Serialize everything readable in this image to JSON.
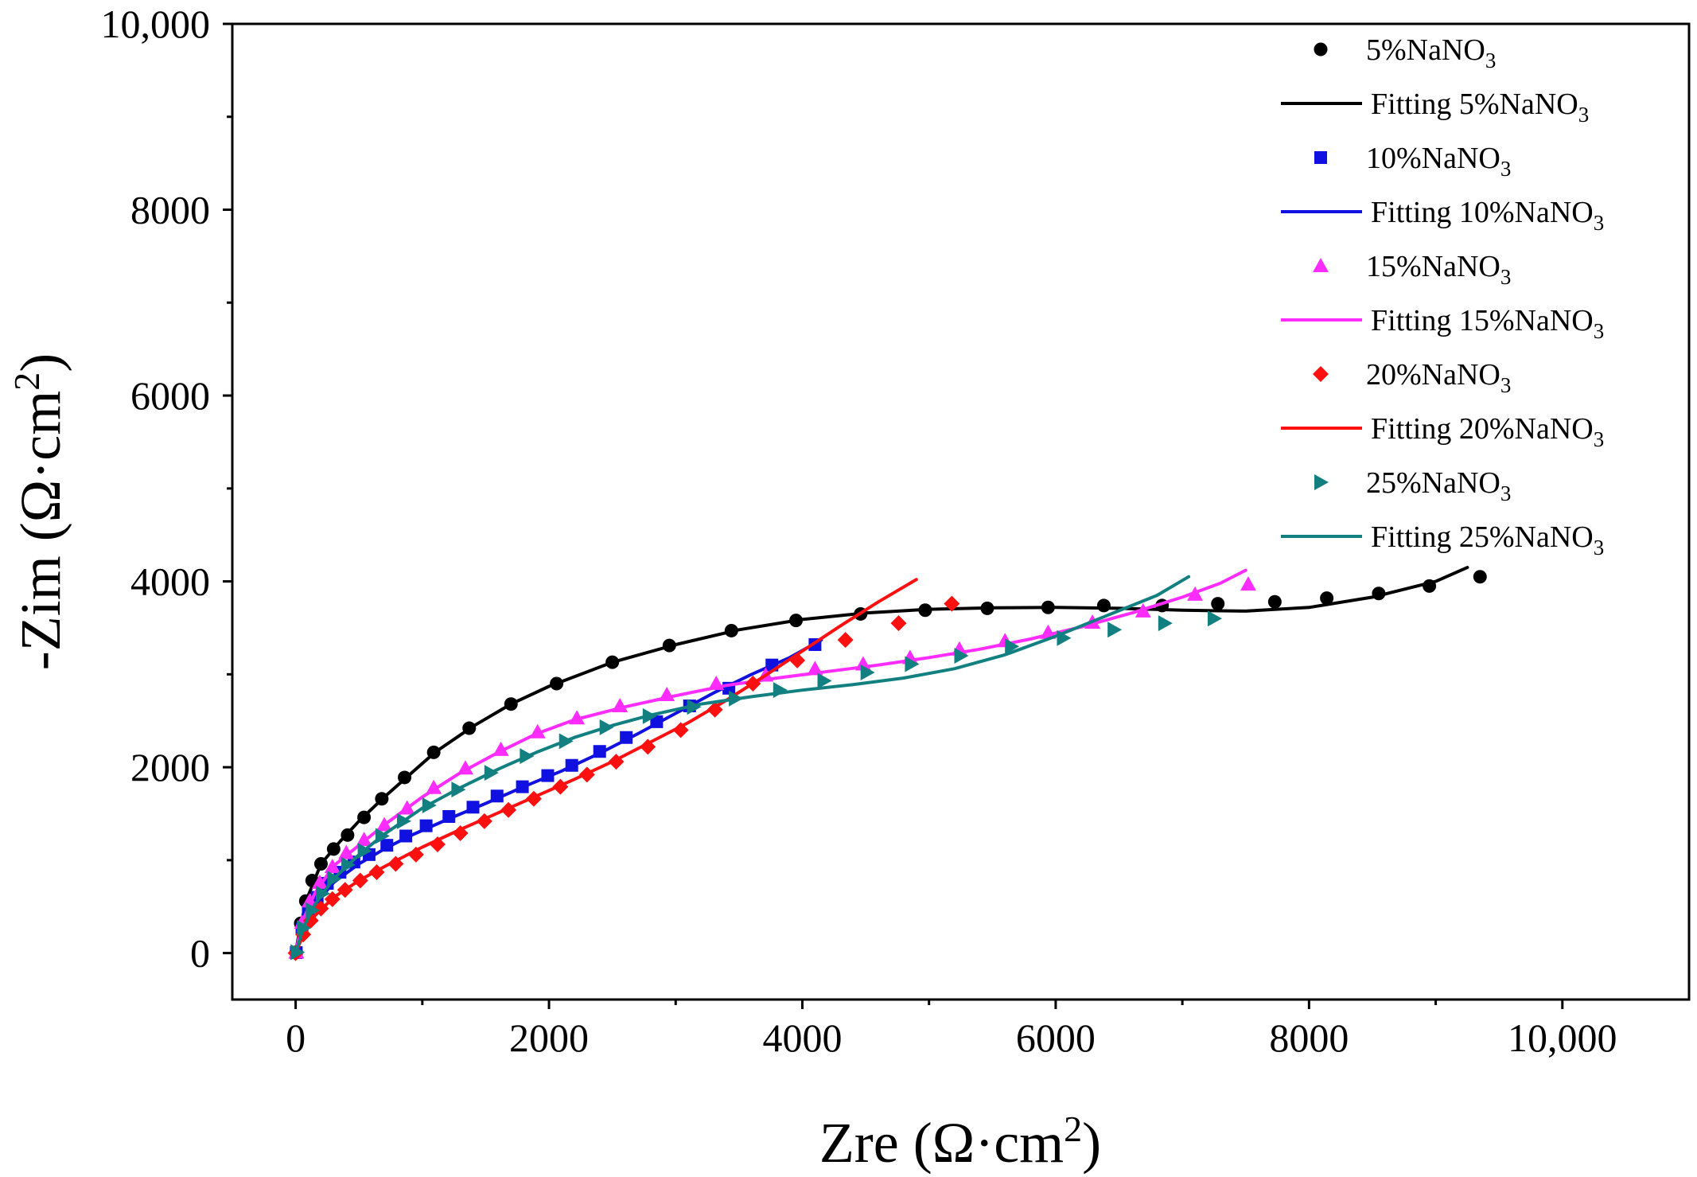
{
  "chart_data": {
    "type": "scatter",
    "title": "",
    "xlabel": {
      "main": "Zre (Ω·cm",
      "sup": "2",
      "tail": ")"
    },
    "ylabel": {
      "main": "-Zim (Ω·cm",
      "sup": "2",
      "tail": ")"
    },
    "xlim": [
      -500,
      11000
    ],
    "ylim": [
      -500,
      10000
    ],
    "xticks": [
      0,
      2000,
      4000,
      6000,
      8000,
      10000
    ],
    "xtick_labels": [
      "0",
      "2000",
      "4000",
      "6000",
      "8000",
      "10,000"
    ],
    "yticks": [
      0,
      2000,
      4000,
      6000,
      8000,
      10000
    ],
    "ytick_labels": [
      "0",
      "2000",
      "4000",
      "6000",
      "8000",
      "10,000"
    ],
    "grid": false,
    "legend_position": "top-right",
    "series": [
      {
        "name": "5%NaNO",
        "sub": "3",
        "fit_name": "Fitting 5%NaNO",
        "fit_sub": "3",
        "color": "#000000",
        "marker": "circle",
        "points": [
          [
            5,
            10
          ],
          [
            40,
            320
          ],
          [
            80,
            560
          ],
          [
            130,
            780
          ],
          [
            200,
            960
          ],
          [
            300,
            1120
          ],
          [
            410,
            1270
          ],
          [
            540,
            1460
          ],
          [
            680,
            1660
          ],
          [
            860,
            1890
          ],
          [
            1090,
            2160
          ],
          [
            1370,
            2420
          ],
          [
            1700,
            2680
          ],
          [
            2060,
            2900
          ],
          [
            2500,
            3130
          ],
          [
            2950,
            3310
          ],
          [
            3440,
            3470
          ],
          [
            3950,
            3580
          ],
          [
            4460,
            3650
          ],
          [
            4970,
            3690
          ],
          [
            5460,
            3710
          ],
          [
            5940,
            3720
          ],
          [
            6380,
            3740
          ],
          [
            6840,
            3740
          ],
          [
            7280,
            3760
          ],
          [
            7730,
            3780
          ],
          [
            8140,
            3820
          ],
          [
            8550,
            3870
          ],
          [
            8950,
            3950
          ],
          [
            9350,
            4050
          ]
        ],
        "fit": [
          [
            0,
            0
          ],
          [
            40,
            320
          ],
          [
            100,
            620
          ],
          [
            200,
            960
          ],
          [
            350,
            1200
          ],
          [
            500,
            1420
          ],
          [
            700,
            1680
          ],
          [
            900,
            1920
          ],
          [
            1100,
            2160
          ],
          [
            1400,
            2440
          ],
          [
            1700,
            2680
          ],
          [
            2000,
            2870
          ],
          [
            2500,
            3130
          ],
          [
            3000,
            3320
          ],
          [
            3500,
            3480
          ],
          [
            4000,
            3590
          ],
          [
            4500,
            3660
          ],
          [
            5000,
            3700
          ],
          [
            5500,
            3715
          ],
          [
            6000,
            3720
          ],
          [
            6500,
            3710
          ],
          [
            7000,
            3690
          ],
          [
            7500,
            3680
          ],
          [
            8000,
            3720
          ],
          [
            8500,
            3830
          ],
          [
            9000,
            4000
          ],
          [
            9250,
            4150
          ]
        ]
      },
      {
        "name": "10%NaNO",
        "sub": "3",
        "fit_name": "Fitting 10%NaNO",
        "fit_sub": "3",
        "color": "#1010e0",
        "marker": "square",
        "points": [
          [
            5,
            5
          ],
          [
            50,
            260
          ],
          [
            100,
            450
          ],
          [
            170,
            600
          ],
          [
            250,
            750
          ],
          [
            350,
            870
          ],
          [
            460,
            980
          ],
          [
            580,
            1060
          ],
          [
            720,
            1160
          ],
          [
            870,
            1260
          ],
          [
            1030,
            1370
          ],
          [
            1210,
            1470
          ],
          [
            1400,
            1570
          ],
          [
            1590,
            1690
          ],
          [
            1790,
            1790
          ],
          [
            1990,
            1910
          ],
          [
            2180,
            2020
          ],
          [
            2400,
            2170
          ],
          [
            2610,
            2320
          ],
          [
            2850,
            2490
          ],
          [
            3110,
            2660
          ],
          [
            3420,
            2850
          ],
          [
            3760,
            3100
          ],
          [
            4100,
            3320
          ]
        ],
        "fit": [
          [
            0,
            0
          ],
          [
            50,
            260
          ],
          [
            150,
            520
          ],
          [
            300,
            760
          ],
          [
            500,
            960
          ],
          [
            700,
            1120
          ],
          [
            900,
            1260
          ],
          [
            1200,
            1440
          ],
          [
            1500,
            1610
          ],
          [
            1800,
            1790
          ],
          [
            2100,
            1960
          ],
          [
            2400,
            2150
          ],
          [
            2700,
            2360
          ],
          [
            3000,
            2580
          ],
          [
            3300,
            2800
          ],
          [
            3600,
            3000
          ],
          [
            3900,
            3180
          ],
          [
            4150,
            3370
          ]
        ]
      },
      {
        "name": "15%NaNO",
        "sub": "3",
        "fit_name": "Fitting 15%NaNO",
        "fit_sub": "3",
        "color": "#ff2cff",
        "marker": "triangle-up",
        "points": [
          [
            5,
            10
          ],
          [
            50,
            330
          ],
          [
            110,
            560
          ],
          [
            190,
            760
          ],
          [
            290,
            930
          ],
          [
            400,
            1080
          ],
          [
            540,
            1220
          ],
          [
            700,
            1380
          ],
          [
            880,
            1560
          ],
          [
            1090,
            1780
          ],
          [
            1340,
            1990
          ],
          [
            1620,
            2190
          ],
          [
            1910,
            2380
          ],
          [
            2220,
            2530
          ],
          [
            2560,
            2660
          ],
          [
            2930,
            2780
          ],
          [
            3320,
            2900
          ],
          [
            3710,
            2990
          ],
          [
            4100,
            3060
          ],
          [
            4480,
            3110
          ],
          [
            4850,
            3180
          ],
          [
            5240,
            3270
          ],
          [
            5600,
            3360
          ],
          [
            5940,
            3450
          ],
          [
            6290,
            3560
          ],
          [
            6690,
            3680
          ],
          [
            7100,
            3860
          ],
          [
            7520,
            3970
          ]
        ],
        "fit": [
          [
            0,
            0
          ],
          [
            50,
            330
          ],
          [
            150,
            640
          ],
          [
            300,
            940
          ],
          [
            500,
            1160
          ],
          [
            700,
            1380
          ],
          [
            1000,
            1680
          ],
          [
            1300,
            1940
          ],
          [
            1600,
            2160
          ],
          [
            1900,
            2360
          ],
          [
            2200,
            2510
          ],
          [
            2600,
            2650
          ],
          [
            3000,
            2770
          ],
          [
            3400,
            2880
          ],
          [
            3800,
            2960
          ],
          [
            4200,
            3030
          ],
          [
            4600,
            3100
          ],
          [
            5000,
            3180
          ],
          [
            5400,
            3270
          ],
          [
            5800,
            3380
          ],
          [
            6200,
            3510
          ],
          [
            6600,
            3660
          ],
          [
            7000,
            3830
          ],
          [
            7300,
            3980
          ],
          [
            7500,
            4120
          ]
        ]
      },
      {
        "name": "20%NaNO",
        "sub": "3",
        "fit_name": "Fitting 20%NaNO",
        "fit_sub": "3",
        "color": "#ff1010",
        "marker": "diamond",
        "points": [
          [
            0,
            0
          ],
          [
            60,
            200
          ],
          [
            120,
            350
          ],
          [
            200,
            480
          ],
          [
            290,
            580
          ],
          [
            390,
            680
          ],
          [
            510,
            780
          ],
          [
            640,
            870
          ],
          [
            790,
            960
          ],
          [
            950,
            1060
          ],
          [
            1120,
            1170
          ],
          [
            1300,
            1290
          ],
          [
            1490,
            1420
          ],
          [
            1680,
            1540
          ],
          [
            1880,
            1660
          ],
          [
            2090,
            1790
          ],
          [
            2300,
            1920
          ],
          [
            2530,
            2060
          ],
          [
            2780,
            2220
          ],
          [
            3040,
            2400
          ],
          [
            3310,
            2620
          ],
          [
            3610,
            2900
          ],
          [
            3960,
            3150
          ],
          [
            4340,
            3370
          ],
          [
            4760,
            3550
          ],
          [
            5180,
            3760
          ]
        ],
        "fit": [
          [
            0,
            0
          ],
          [
            60,
            200
          ],
          [
            150,
            400
          ],
          [
            300,
            600
          ],
          [
            500,
            780
          ],
          [
            700,
            930
          ],
          [
            1000,
            1140
          ],
          [
            1300,
            1330
          ],
          [
            1600,
            1510
          ],
          [
            1900,
            1690
          ],
          [
            2200,
            1870
          ],
          [
            2500,
            2060
          ],
          [
            2800,
            2270
          ],
          [
            3100,
            2480
          ],
          [
            3400,
            2720
          ],
          [
            3700,
            2980
          ],
          [
            4000,
            3250
          ],
          [
            4300,
            3520
          ],
          [
            4600,
            3780
          ],
          [
            4900,
            4020
          ]
        ]
      },
      {
        "name": "25%NaNO",
        "sub": "3",
        "fit_name": "Fitting 25%NaNO",
        "fit_sub": "3",
        "color": "#128080",
        "marker": "triangle-right",
        "points": [
          [
            10,
            10
          ],
          [
            60,
            270
          ],
          [
            130,
            460
          ],
          [
            210,
            640
          ],
          [
            300,
            800
          ],
          [
            410,
            950
          ],
          [
            540,
            1100
          ],
          [
            680,
            1260
          ],
          [
            850,
            1420
          ],
          [
            1050,
            1590
          ],
          [
            1280,
            1760
          ],
          [
            1540,
            1940
          ],
          [
            1820,
            2120
          ],
          [
            2130,
            2280
          ],
          [
            2450,
            2430
          ],
          [
            2790,
            2550
          ],
          [
            3140,
            2650
          ],
          [
            3470,
            2740
          ],
          [
            3820,
            2830
          ],
          [
            4170,
            2930
          ],
          [
            4510,
            3020
          ],
          [
            4860,
            3110
          ],
          [
            5250,
            3200
          ],
          [
            5650,
            3300
          ],
          [
            6060,
            3390
          ],
          [
            6460,
            3480
          ],
          [
            6860,
            3550
          ],
          [
            7250,
            3600
          ]
        ],
        "fit": [
          [
            0,
            0
          ],
          [
            60,
            270
          ],
          [
            150,
            520
          ],
          [
            300,
            800
          ],
          [
            500,
            1060
          ],
          [
            700,
            1280
          ],
          [
            1000,
            1560
          ],
          [
            1300,
            1780
          ],
          [
            1600,
            1980
          ],
          [
            1900,
            2160
          ],
          [
            2200,
            2320
          ],
          [
            2500,
            2450
          ],
          [
            2800,
            2560
          ],
          [
            3200,
            2680
          ],
          [
            3600,
            2760
          ],
          [
            4000,
            2830
          ],
          [
            4400,
            2890
          ],
          [
            4800,
            2960
          ],
          [
            5200,
            3060
          ],
          [
            5600,
            3210
          ],
          [
            6000,
            3410
          ],
          [
            6400,
            3630
          ],
          [
            6800,
            3850
          ],
          [
            7050,
            4050
          ]
        ]
      }
    ]
  }
}
